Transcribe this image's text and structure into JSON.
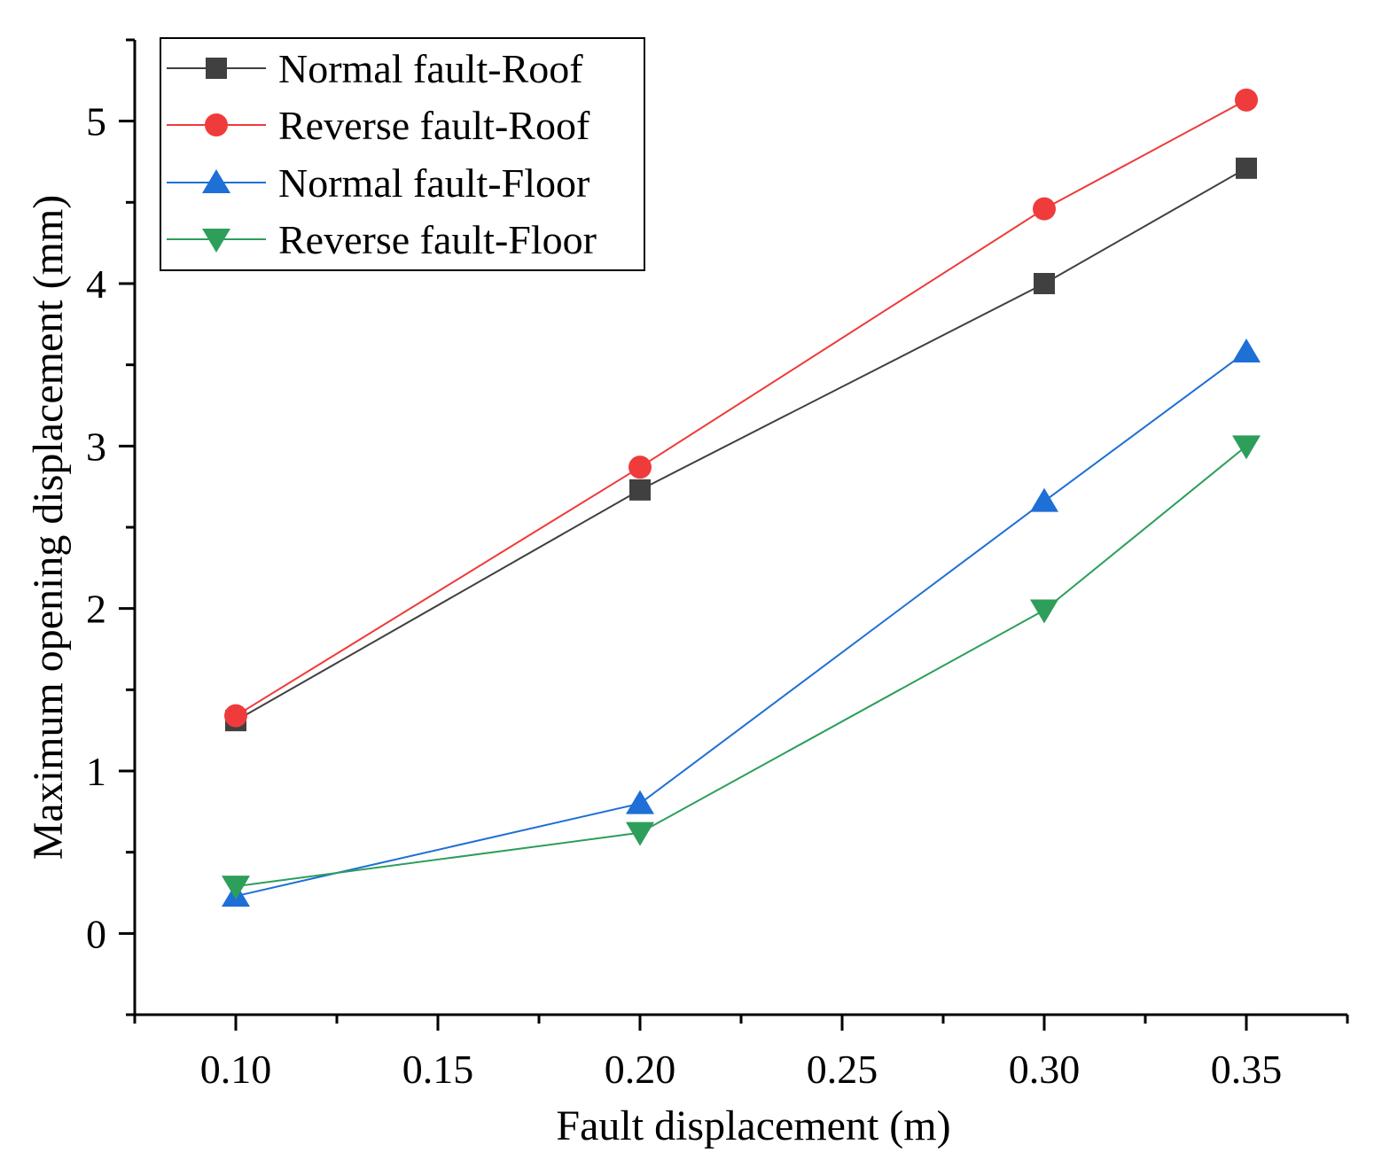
{
  "chart_data": {
    "type": "line",
    "title": "",
    "xlabel": "Fault displacement (m)",
    "ylabel": "Maximum opening displacement (mm)",
    "xlim": [
      0.075,
      0.375
    ],
    "ylim": [
      -0.5,
      5.5
    ],
    "x": [
      0.1,
      0.2,
      0.3,
      0.35
    ],
    "xticks": [
      0.1,
      0.15,
      0.2,
      0.25,
      0.3,
      0.35
    ],
    "xtick_labels": [
      "0.10",
      "0.15",
      "0.20",
      "0.25",
      "0.30",
      "0.35"
    ],
    "yticks": [
      0,
      1,
      2,
      3,
      4,
      5
    ],
    "ytick_labels": [
      "0",
      "1",
      "2",
      "3",
      "4",
      "5"
    ],
    "grid": false,
    "legend_position": "top-left",
    "series": [
      {
        "name": "Normal fault-Roof",
        "marker": "square",
        "color": "#404040",
        "values": [
          1.31,
          2.73,
          4.0,
          4.71
        ]
      },
      {
        "name": "Reverse fault-Roof",
        "marker": "circle",
        "color": "#ef3b3b",
        "values": [
          1.34,
          2.87,
          4.46,
          5.13
        ]
      },
      {
        "name": "Normal fault-Floor",
        "marker": "triangle-up",
        "color": "#1e6fd6",
        "values": [
          0.23,
          0.8,
          2.66,
          3.58
        ]
      },
      {
        "name": "Reverse fault-Floor",
        "marker": "triangle-down",
        "color": "#2e9e5b",
        "values": [
          0.29,
          0.62,
          1.99,
          3.0
        ]
      }
    ]
  }
}
